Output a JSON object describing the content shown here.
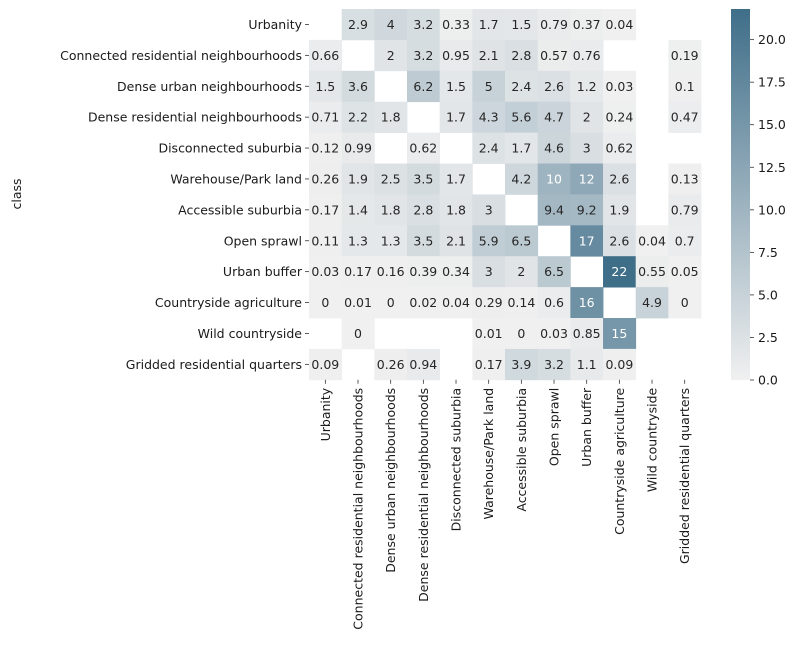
{
  "chart_data": {
    "type": "heatmap",
    "title": "",
    "xlabel": "",
    "ylabel": "class",
    "rows": [
      "Urbanity",
      "Connected residential neighbourhoods",
      "Dense urban neighbourhoods",
      "Dense residential neighbourhoods",
      "Disconnected suburbia",
      "Warehouse/Park land",
      "Accessible suburbia",
      "Open sprawl",
      "Urban buffer",
      "Countryside agriculture",
      "Wild countryside",
      "Gridded residential quarters"
    ],
    "columns": [
      "Urbanity",
      "Connected residential neighbourhoods",
      "Dense urban neighbourhoods",
      "Dense residential neighbourhoods",
      "Disconnected suburbia",
      "Warehouse/Park land",
      "Accessible suburbia",
      "Open sprawl",
      "Urban buffer",
      "Countryside agriculture",
      "Wild countryside",
      "Gridded residential quarters"
    ],
    "values": [
      [
        null,
        2.9,
        4,
        3.2,
        0.33,
        1.7,
        1.5,
        0.79,
        0.37,
        0.04,
        null,
        null
      ],
      [
        0.66,
        null,
        2,
        3.2,
        0.95,
        2.1,
        2.8,
        0.57,
        0.76,
        null,
        null,
        0.19
      ],
      [
        1.5,
        3.6,
        null,
        6.2,
        1.5,
        5,
        2.4,
        2.6,
        1.2,
        0.03,
        null,
        0.1
      ],
      [
        0.71,
        2.2,
        1.8,
        null,
        1.7,
        4.3,
        5.6,
        4.7,
        2,
        0.24,
        null,
        0.47
      ],
      [
        0.12,
        0.99,
        null,
        0.62,
        null,
        2.4,
        1.7,
        4.6,
        3,
        0.62,
        null,
        null
      ],
      [
        0.26,
        1.9,
        2.5,
        3.5,
        1.7,
        null,
        4.2,
        10,
        12,
        2.6,
        null,
        0.13
      ],
      [
        0.17,
        1.4,
        1.8,
        2.8,
        1.8,
        3,
        null,
        9.4,
        9.2,
        1.9,
        null,
        0.79
      ],
      [
        0.11,
        1.3,
        1.3,
        3.5,
        2.1,
        5.9,
        6.5,
        null,
        17,
        2.6,
        0.04,
        0.7
      ],
      [
        0.03,
        0.17,
        0.16,
        0.39,
        0.34,
        3,
        2,
        6.5,
        null,
        22,
        0.55,
        0.05
      ],
      [
        0,
        0.01,
        0,
        0.02,
        0.04,
        0.29,
        0.14,
        0.6,
        16,
        null,
        4.9,
        0
      ],
      [
        null,
        0,
        null,
        null,
        null,
        0.01,
        0,
        0.03,
        0.85,
        15,
        null,
        null
      ],
      [
        0.09,
        null,
        0.26,
        0.94,
        null,
        0.17,
        3.9,
        3.2,
        1.1,
        0.09,
        null,
        null
      ]
    ],
    "colorbar": {
      "min": 0,
      "max": 21.8,
      "ticks": [
        0.0,
        2.5,
        5.0,
        7.5,
        10.0,
        12.5,
        15.0,
        17.5,
        20.0
      ],
      "tick_labels": [
        "0.0",
        "2.5",
        "5.0",
        "7.5",
        "10.0",
        "12.5",
        "15.0",
        "17.5",
        "20.0"
      ]
    },
    "colors": {
      "low": "#f0f0f0",
      "high": "#3f6e89",
      "text_dark": "#262626",
      "text_light": "#ffffff"
    },
    "grid": false,
    "legend": "colorbar-right"
  }
}
